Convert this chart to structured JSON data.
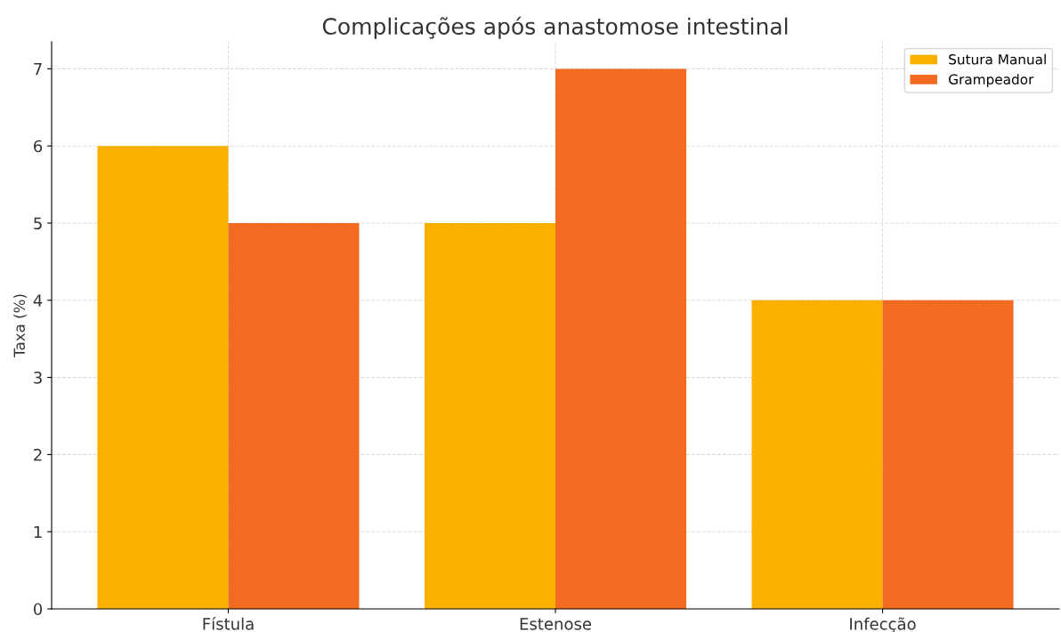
{
  "chart_data": {
    "type": "bar",
    "title": "Complicações após anastomose intestinal",
    "ylabel": "Taxa (%)",
    "categories": [
      "Fístula",
      "Estenose",
      "Infecção"
    ],
    "series": [
      {
        "name": "Sutura Manual",
        "color": "#fbb000",
        "values": [
          6,
          5,
          4
        ]
      },
      {
        "name": "Grampeador",
        "color": "#f26b21",
        "values": [
          5,
          7,
          4
        ]
      }
    ],
    "ylim": [
      0,
      7.35
    ],
    "yticks": [
      0,
      1,
      2,
      3,
      4,
      5,
      6,
      7
    ],
    "grid": true,
    "legend": "top right"
  }
}
